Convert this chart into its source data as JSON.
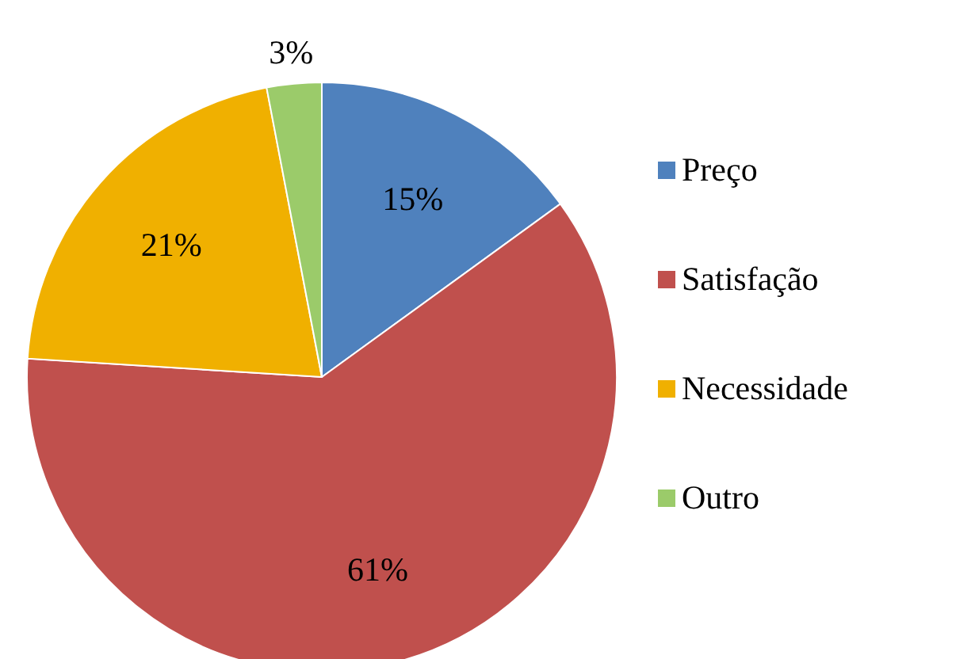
{
  "chart_data": {
    "type": "pie",
    "categories": [
      "Preço",
      "Satisfação",
      "Necessidade",
      "Outro"
    ],
    "values": [
      15,
      61,
      21,
      3
    ],
    "colors": [
      "#4f81bd",
      "#c0504d",
      "#f0b000",
      "#9bcb6a"
    ],
    "value_labels": [
      "15%",
      "61%",
      "21%",
      "3%"
    ],
    "legend": "right"
  }
}
